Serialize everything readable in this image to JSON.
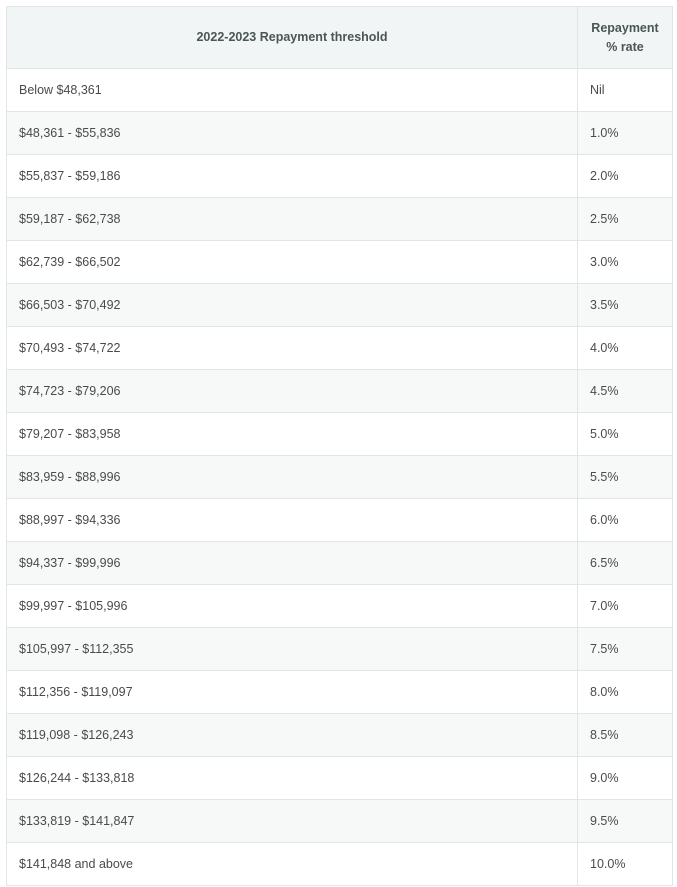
{
  "table": {
    "headers": {
      "threshold": "2022-2023 Repayment threshold",
      "rate": "Repayment % rate"
    },
    "rows": [
      {
        "threshold": "Below $48,361",
        "rate": "Nil"
      },
      {
        "threshold": "$48,361 - $55,836",
        "rate": "1.0%"
      },
      {
        "threshold": "$55,837 - $59,186",
        "rate": "2.0%"
      },
      {
        "threshold": "$59,187 - $62,738",
        "rate": "2.5%"
      },
      {
        "threshold": "$62,739 - $66,502",
        "rate": "3.0%"
      },
      {
        "threshold": "$66,503 - $70,492",
        "rate": "3.5%"
      },
      {
        "threshold": "$70,493 - $74,722",
        "rate": "4.0%"
      },
      {
        "threshold": "$74,723 - $79,206",
        "rate": "4.5%"
      },
      {
        "threshold": "$79,207 - $83,958",
        "rate": "5.0%"
      },
      {
        "threshold": "$83,959 - $88,996",
        "rate": "5.5%"
      },
      {
        "threshold": "$88,997 - $94,336",
        "rate": "6.0%"
      },
      {
        "threshold": "$94,337 - $99,996",
        "rate": "6.5%"
      },
      {
        "threshold": "$99,997 - $105,996",
        "rate": "7.0%"
      },
      {
        "threshold": "$105,997 - $112,355",
        "rate": "7.5%"
      },
      {
        "threshold": "$112,356 - $119,097",
        "rate": "8.0%"
      },
      {
        "threshold": "$119,098 - $126,243",
        "rate": "8.5%"
      },
      {
        "threshold": "$126,244 - $133,818",
        "rate": "9.0%"
      },
      {
        "threshold": "$133,819 - $141,847",
        "rate": "9.5%"
      },
      {
        "threshold": "$141,848 and above",
        "rate": "10.0%"
      }
    ]
  },
  "colors": {
    "header_bg": "#f1f5f5",
    "border": "#dfe7e6",
    "stripe_bg": "#f7f9f9",
    "text": "#4a4a4a"
  }
}
